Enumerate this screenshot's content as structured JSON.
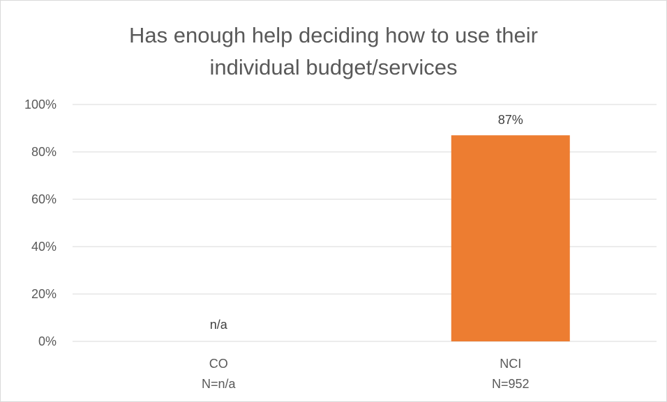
{
  "chart_data": {
    "type": "bar",
    "title_lines": [
      "Has enough help deciding how to use their",
      "individual budget/services"
    ],
    "categories": [
      {
        "name": "CO",
        "n_label": "N=n/a"
      },
      {
        "name": "NCI",
        "n_label": "N=952"
      }
    ],
    "values": [
      null,
      87
    ],
    "data_labels": [
      "n/a",
      "87%"
    ],
    "y_ticks": [
      "0%",
      "20%",
      "40%",
      "60%",
      "80%",
      "100%"
    ],
    "ylim": [
      0,
      100
    ],
    "grid": true,
    "legend": "none",
    "bar_color": "#ed7d31",
    "gridline_color": "#d9d9d9"
  }
}
